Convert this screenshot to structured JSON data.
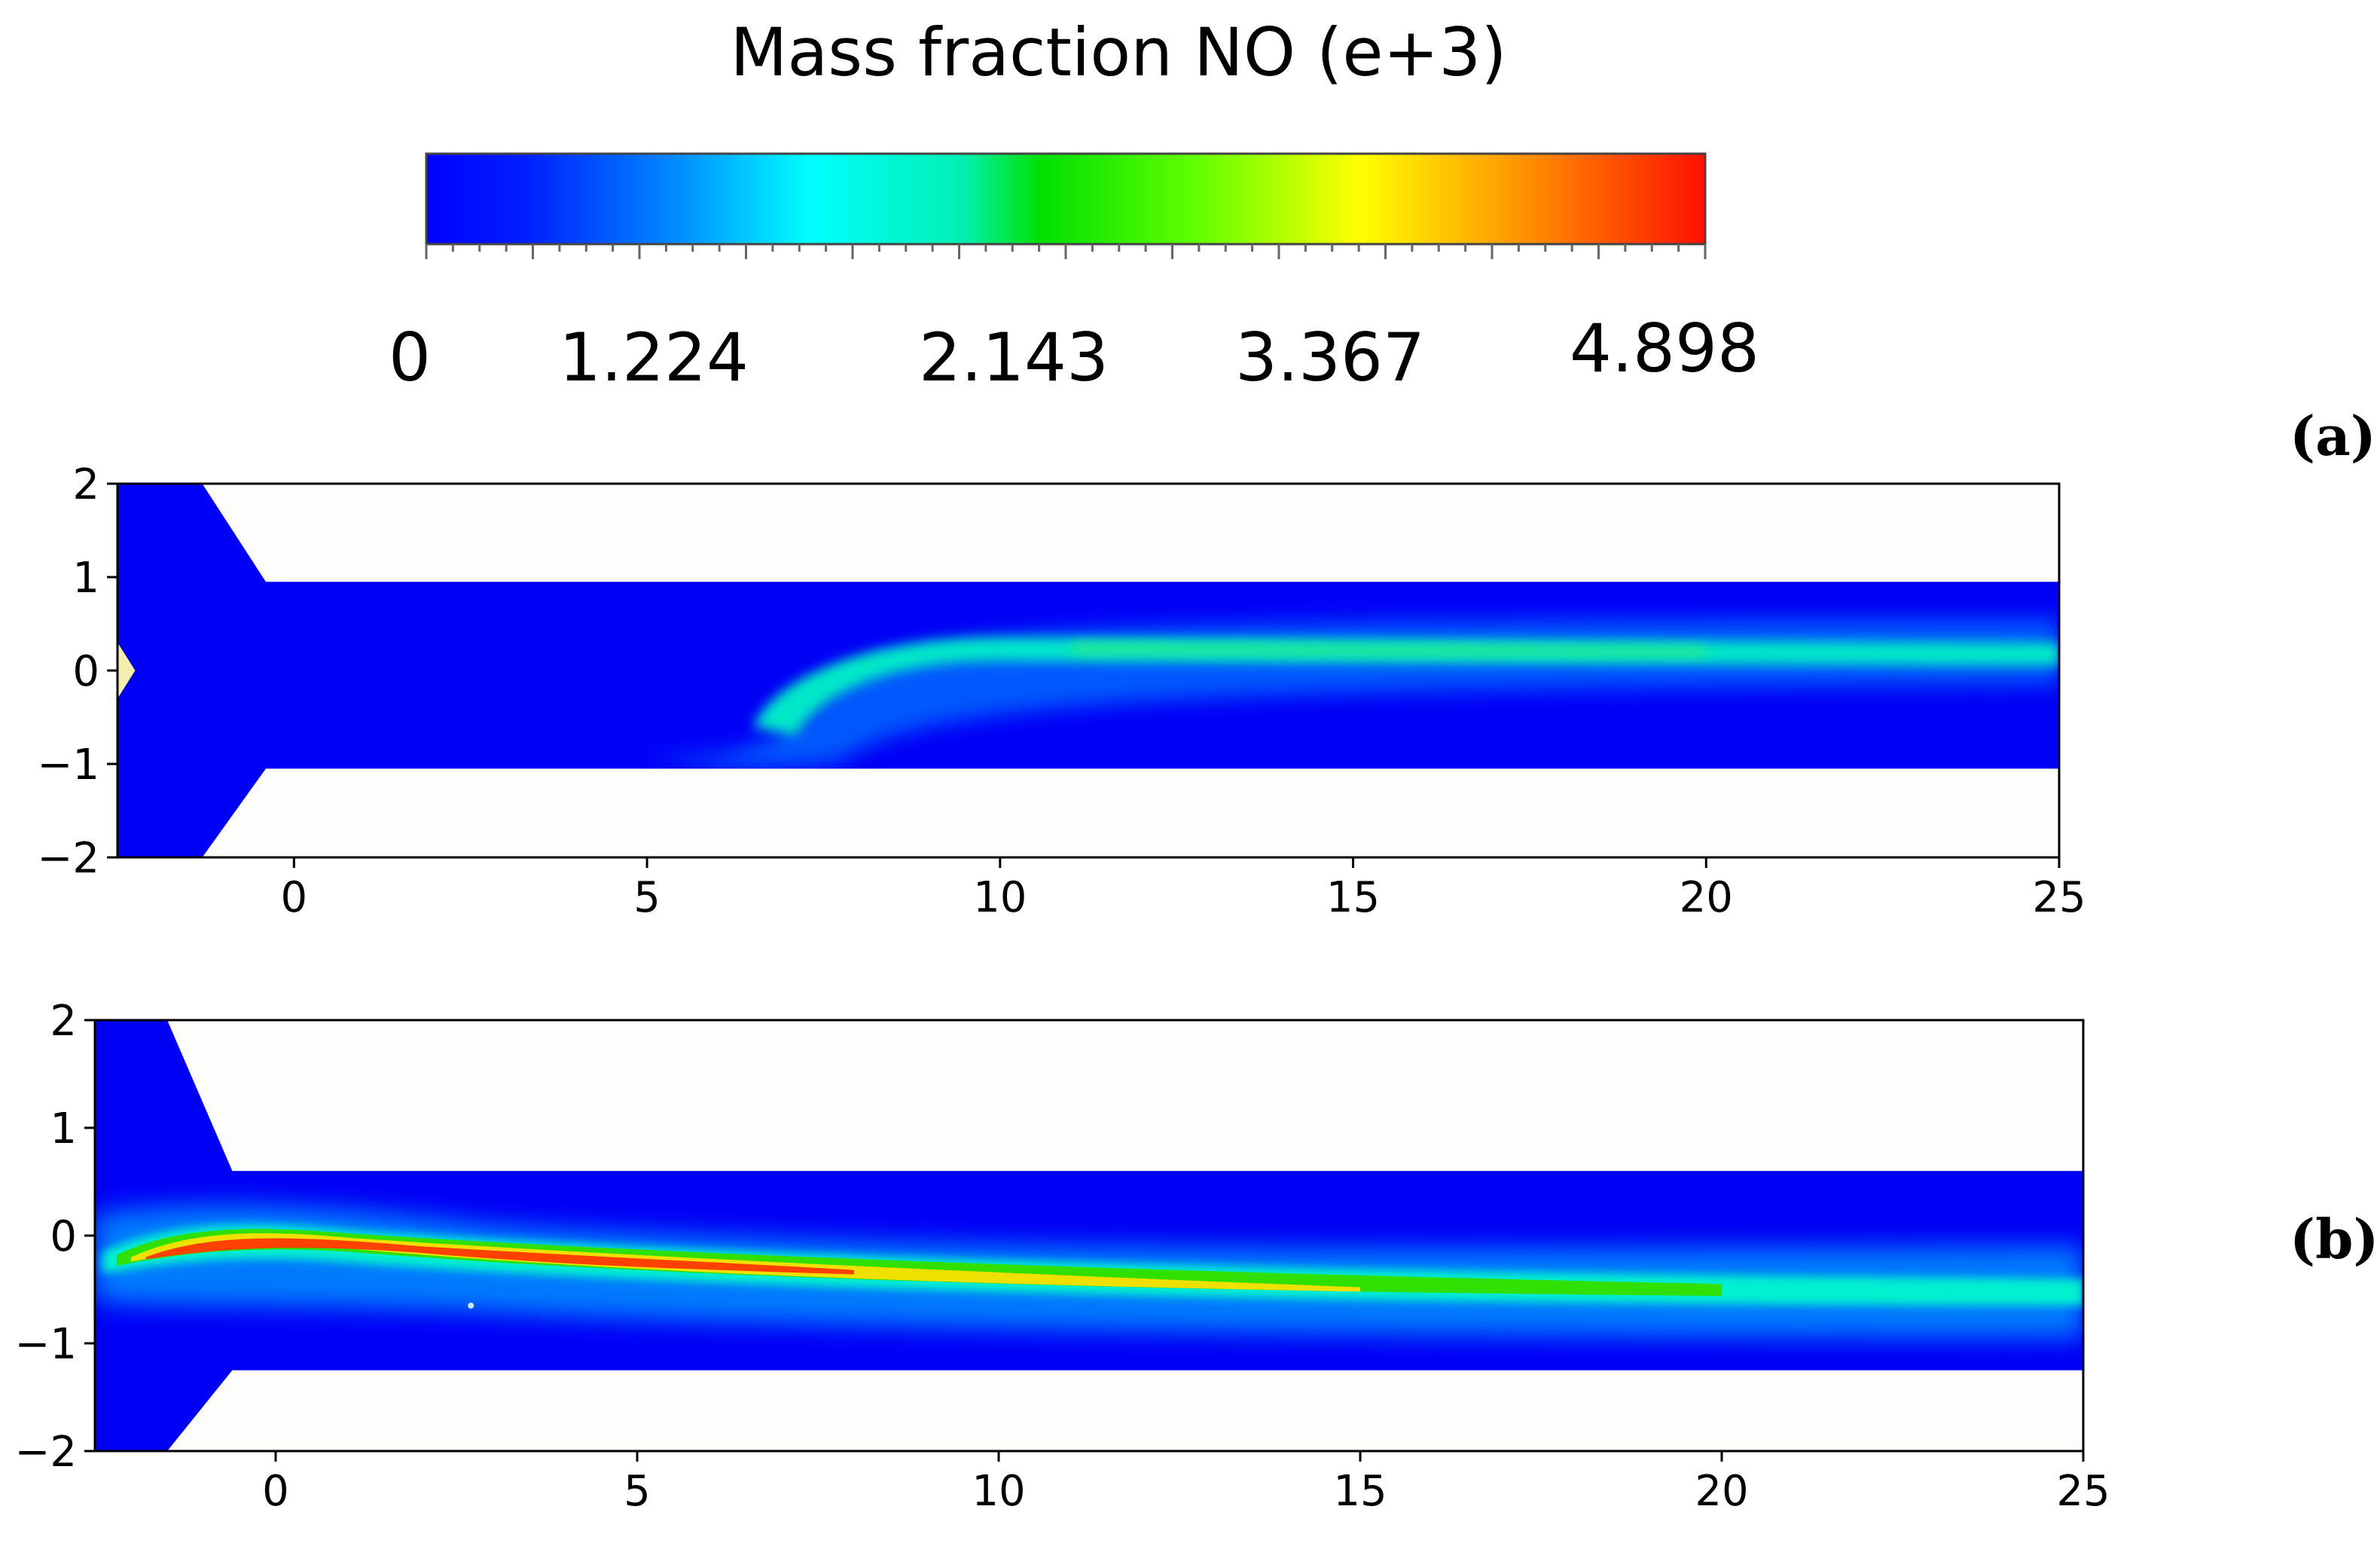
{
  "chart_data": [
    {
      "type": "contour",
      "panel": "a",
      "panel_label": "(a)",
      "quantity": "Mass fraction NO (e+3)",
      "colorbar": {
        "label": "Mass fraction NO (e+3)",
        "min": 0,
        "max": 4.898,
        "tick_labels": [
          "0",
          "1.224",
          "2.143",
          "3.367",
          "4.898"
        ],
        "tick_values": [
          0,
          1.224,
          2.143,
          3.367,
          4.898
        ],
        "colormap": "jet",
        "colors": [
          "#0000ff",
          "#0087ff",
          "#00ffff",
          "#00e000",
          "#ffff00",
          "#ff8000",
          "#ff1a00"
        ]
      },
      "xlim": [
        -2.5,
        25
      ],
      "ylim": [
        -2,
        2
      ],
      "xticks": [
        0,
        5,
        10,
        15,
        20,
        25
      ],
      "yticks": [
        2,
        1,
        0,
        -1,
        -2
      ],
      "xtick_labels": [
        "0",
        "5",
        "10",
        "15",
        "20",
        "25"
      ],
      "ytick_labels": [
        "2",
        "1",
        "0",
        "−1",
        "−2"
      ],
      "domain": {
        "inlet_x_start": -2.5,
        "taper_start_x": -1.3,
        "taper_end_x": -0.4,
        "channel_top_y": 0.95,
        "channel_bottom_y": -1.05
      },
      "plume": {
        "start_x": 6.5,
        "bend_y": -0.6,
        "centerline_y": 0.25,
        "peak_value": 2.1,
        "peak_x_range": [
          10,
          20
        ]
      }
    },
    {
      "type": "contour",
      "panel": "b",
      "panel_label": "(b)",
      "quantity": "Mass fraction NO (e+3)",
      "xlim": [
        -2.5,
        25
      ],
      "ylim": [
        -2,
        2
      ],
      "xticks": [
        0,
        5,
        10,
        15,
        20,
        25
      ],
      "yticks": [
        2,
        1,
        0,
        -1,
        -2
      ],
      "xtick_labels": [
        "0",
        "5",
        "10",
        "15",
        "20",
        "25"
      ],
      "ytick_labels": [
        "2",
        "1",
        "0",
        "−1",
        "−2"
      ],
      "domain": {
        "inlet_x_start": -2.5,
        "taper_start_x": -1.5,
        "taper_end_x": -0.6,
        "channel_top_y": 0.6,
        "channel_bottom_y": -1.25
      },
      "plume": {
        "start_x": -2.3,
        "start_y": -0.2,
        "crest_x": 0.3,
        "crest_y": 0.05,
        "end_y": -0.5,
        "peak_value": 4.898,
        "peak_x": 5.5
      }
    }
  ]
}
